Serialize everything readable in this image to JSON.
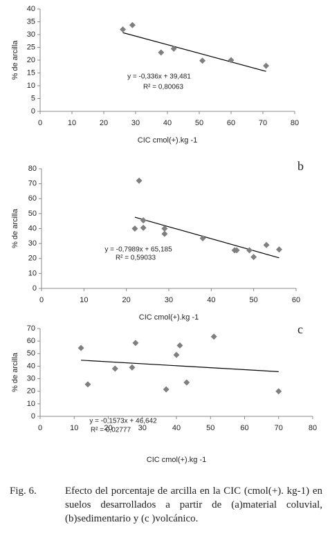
{
  "chart_data": [
    {
      "type": "scatter",
      "x": [
        26,
        29,
        38,
        42,
        51,
        60,
        71
      ],
      "y": [
        32,
        33.7,
        23,
        24.5,
        19.8,
        20,
        17.8
      ],
      "xlim": [
        0,
        80
      ],
      "ylim": [
        0,
        40
      ],
      "xticks": [
        0,
        10,
        20,
        30,
        40,
        50,
        60,
        70,
        80
      ],
      "yticks": [
        0,
        5,
        10,
        15,
        20,
        25,
        30,
        35,
        40
      ],
      "xlabel": "CIC cmol(+).kg -1",
      "ylabel": "% de arcilla",
      "color": "#7f7f7f",
      "trendline": {
        "slope": -0.336,
        "intercept": 39.481,
        "equation": "y = -0,336x + 39,481",
        "r2_label": "R² = 0,80063",
        "color": "#000000"
      }
    },
    {
      "type": "scatter",
      "label": "b",
      "x": [
        22,
        23,
        24,
        24,
        29,
        29,
        38,
        45.5,
        46,
        49,
        50,
        53,
        56
      ],
      "y": [
        40,
        72,
        40.5,
        45.5,
        40,
        36.5,
        33.5,
        25.5,
        25.5,
        25.5,
        21,
        29,
        26
      ],
      "xlim": [
        0,
        60
      ],
      "ylim": [
        0,
        80
      ],
      "xticks": [
        0,
        10,
        20,
        30,
        40,
        50,
        60
      ],
      "yticks": [
        0,
        10,
        20,
        30,
        40,
        50,
        60,
        70,
        80
      ],
      "xlabel": "CIC cmol(+).kg -1",
      "ylabel": "% de arcilla",
      "color": "#7f7f7f",
      "trendline": {
        "slope": -0.7989,
        "intercept": 65.185,
        "equation": "y = -0,7989x + 65,185",
        "r2_label": "R² = 0,59033",
        "color": "#000000"
      }
    },
    {
      "type": "scatter",
      "label": "c",
      "x": [
        12,
        14,
        22,
        27,
        28,
        37,
        40,
        41,
        43,
        51,
        70
      ],
      "y": [
        54.5,
        25.5,
        38,
        39,
        58.5,
        21.5,
        49,
        56.5,
        27,
        63.5,
        20
      ],
      "xlim": [
        0,
        80
      ],
      "ylim": [
        0,
        70
      ],
      "xticks": [
        0,
        10,
        20,
        30,
        40,
        50,
        60,
        70,
        80
      ],
      "yticks": [
        0,
        10,
        20,
        30,
        40,
        50,
        60,
        70
      ],
      "xlabel": "CIC cmol(+).kg -1",
      "ylabel": "% de arcilla",
      "color": "#7f7f7f",
      "trendline": {
        "slope": -0.1573,
        "intercept": 46.642,
        "equation": "y = -0,1573x + 46,642",
        "r2_label": "R² = 0,02777",
        "color": "#000000"
      }
    }
  ],
  "caption": {
    "number": "Fig. 6.",
    "text": "Efecto del porcentaje de arcilla en la CIC (cmol(+). kg-1) en suelos desarrollados a partir de (a)material coluvial, (b)sedimentario y (c )volcánico."
  }
}
